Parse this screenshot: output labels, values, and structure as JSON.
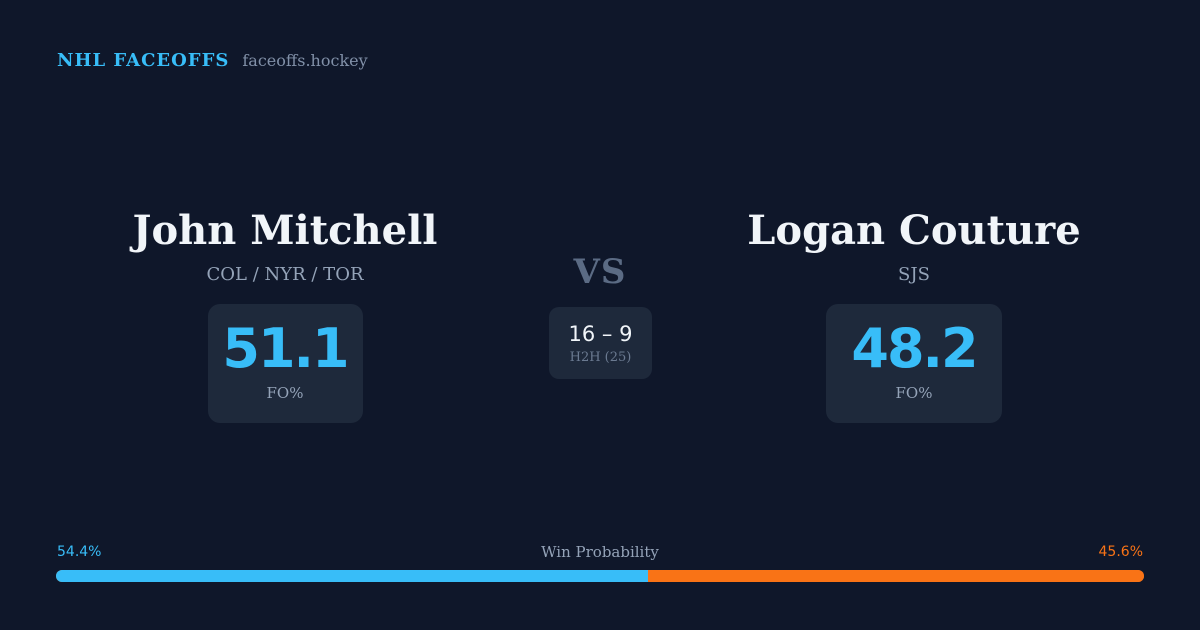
{
  "header": {
    "title": "NHL FACEOFFS",
    "domain": "faceoffs.hockey"
  },
  "player_left": {
    "name": "John Mitchell",
    "teams": "COL / NYR / TOR",
    "fo_value": "51.1",
    "fo_label": "FO%"
  },
  "player_right": {
    "name": "Logan Couture",
    "teams": "SJS",
    "fo_value": "48.2",
    "fo_label": "FO%"
  },
  "versus": {
    "label": "VS",
    "h2h_score": "16 – 9",
    "h2h_label": "H2H (25)"
  },
  "win_probability": {
    "title": "Win Probability",
    "left_label": "54.4%",
    "right_label": "45.6%",
    "left_fraction": 0.544,
    "left_color": "#38bdf8",
    "right_color": "#f97316"
  },
  "colors": {
    "background": "#0f172a",
    "card": "#1e293b",
    "accent": "#38bdf8"
  }
}
